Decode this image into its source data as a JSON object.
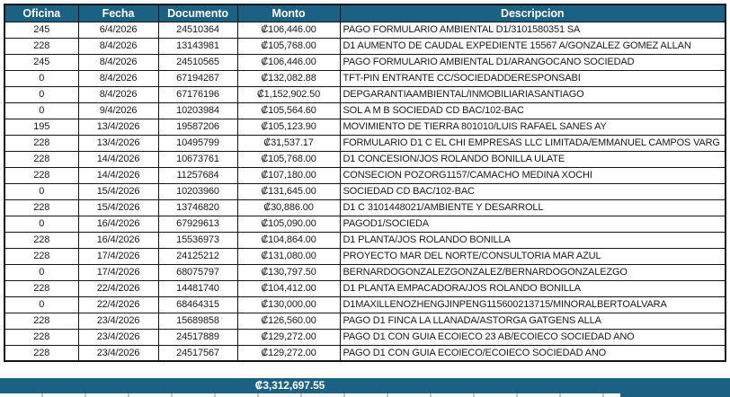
{
  "colors": {
    "header_bg": "#1B6183",
    "border": "#141414",
    "header_text": "#ffffff",
    "body_text": "#1a1a1a",
    "footer_bg": "#1B6183"
  },
  "table": {
    "columns": [
      {
        "key": "oficina",
        "label": "Oficina"
      },
      {
        "key": "fecha",
        "label": "Fecha"
      },
      {
        "key": "documento",
        "label": "Documento"
      },
      {
        "key": "monto",
        "label": "Monto"
      },
      {
        "key": "descripcion",
        "label": "Descripcion"
      }
    ],
    "rows": [
      {
        "oficina": "245",
        "fecha": "6/4/2026",
        "documento": "24510364",
        "monto": "₡106,446.00",
        "descripcion": "PAGO FORMULARIO AMBIENTAL D1/3101580351 SA"
      },
      {
        "oficina": "228",
        "fecha": "8/4/2026",
        "documento": "13143981",
        "monto": "₡105,768.00",
        "descripcion": "D1 AUMENTO DE CAUDAL EXPEDIENTE 15567 A/GONZALEZ GOMEZ ALLAN"
      },
      {
        "oficina": "245",
        "fecha": "8/4/2026",
        "documento": "24510565",
        "monto": "₡106,446.00",
        "descripcion": "PAGO FORMULARIO AMBIENTAL D1/ARANGOCANO SOCIEDAD"
      },
      {
        "oficina": "0",
        "fecha": "8/4/2026",
        "documento": "67194267",
        "monto": "₡132,082.88",
        "descripcion": "TFT-PIN ENTRANTE CC/SOCIEDADDERESPONSABI"
      },
      {
        "oficina": "0",
        "fecha": "8/4/2026",
        "documento": "67176196",
        "monto": "₡1,152,902.50",
        "descripcion": "DEPGARANTIAAMBIENTAL/INMOBILIARIASANTIAGO"
      },
      {
        "oficina": "0",
        "fecha": "9/4/2026",
        "documento": "10203984",
        "monto": "₡105,564.60",
        "descripcion": "SOL A M B SOCIEDAD CD BAC/102-BAC"
      },
      {
        "oficina": "195",
        "fecha": "13/4/2026",
        "documento": "19587206",
        "monto": "₡105,123.90",
        "descripcion": "MOVIMIENTO DE TIERRA 801010/LUIS RAFAEL SANES AY"
      },
      {
        "oficina": "228",
        "fecha": "13/4/2026",
        "documento": "10495799",
        "monto": "₡31,537.17",
        "descripcion": "FORMULARIO D1 C EL CHI EMPRESAS LLC LIMITADA/EMMANUEL CAMPOS VARG"
      },
      {
        "oficina": "228",
        "fecha": "14/4/2026",
        "documento": "10673761",
        "monto": "₡105,768.00",
        "descripcion": "D1 CONCESION/JOS ROLANDO BONILLA ULATE"
      },
      {
        "oficina": "228",
        "fecha": "14/4/2026",
        "documento": "11257684",
        "monto": "₡107,180.00",
        "descripcion": "CONSECION POZORG1157/CAMACHO MEDINA XOCHI"
      },
      {
        "oficina": "0",
        "fecha": "15/4/2026",
        "documento": "10203960",
        "monto": "₡131,645.00",
        "descripcion": "SOCIEDAD CD BAC/102-BAC"
      },
      {
        "oficina": "228",
        "fecha": "15/4/2026",
        "documento": "13746820",
        "monto": "₡30,886.00",
        "descripcion": "D1 C 3101448021/AMBIENTE Y DESARROLL"
      },
      {
        "oficina": "0",
        "fecha": "16/4/2026",
        "documento": "67929613",
        "monto": "₡105,090.00",
        "descripcion": "PAGOD1/SOCIEDA"
      },
      {
        "oficina": "228",
        "fecha": "16/4/2026",
        "documento": "15536973",
        "monto": "₡104,864.00",
        "descripcion": "D1 PLANTA/JOS ROLANDO BONILLA"
      },
      {
        "oficina": "228",
        "fecha": "17/4/2026",
        "documento": "24125212",
        "monto": "₡131,080.00",
        "descripcion": "PROYECTO MAR DEL NORTE/CONSULTORIA MAR AZUL"
      },
      {
        "oficina": "0",
        "fecha": "17/4/2026",
        "documento": "68075797",
        "monto": "₡130,797.50",
        "descripcion": "BERNARDOGONZALEZGONZALEZ/BERNARDOGONZALEZGO"
      },
      {
        "oficina": "228",
        "fecha": "22/4/2026",
        "documento": "14481740",
        "monto": "₡104,412.00",
        "descripcion": "D1 PLANTA EMPACADORA/JOS ROLANDO BONILLA"
      },
      {
        "oficina": "0",
        "fecha": "22/4/2026",
        "documento": "68464315",
        "monto": "₡130,000.00",
        "descripcion": "D1MAXILLENOZHENGJINPENG115600213715/MINORALBERTOALVARA"
      },
      {
        "oficina": "228",
        "fecha": "23/4/2026",
        "documento": "15689858",
        "monto": "₡126,560.00",
        "descripcion": "PAGO D1 FINCA LA LLANADA/ASTORGA GATGENS ALLA"
      },
      {
        "oficina": "228",
        "fecha": "23/4/2026",
        "documento": "24517889",
        "monto": "₡129,272.00",
        "descripcion": "PAGO D1 CON GUIA ECOIECO 23 AB/ECOIECO SOCIEDAD ANO"
      },
      {
        "oficina": "228",
        "fecha": "23/4/2026",
        "documento": "24517567",
        "monto": "₡129,272.00",
        "descripcion": "PAGO D1 CON GUIA ECOIECO/ECOIECO SOCIEDAD ANO"
      }
    ]
  },
  "footer": {
    "total": "₡3,312,697.55"
  }
}
